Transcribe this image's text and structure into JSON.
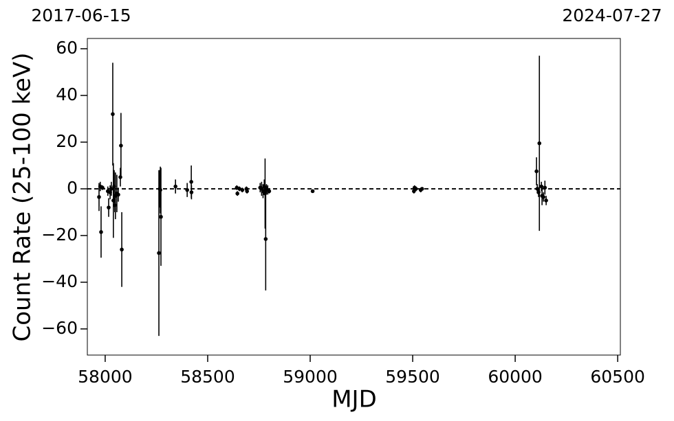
{
  "chart_data": {
    "type": "errorbar",
    "x_range_labels": [
      "2017-06-15",
      "2024-07-27"
    ],
    "xlabel": "MJD",
    "ylabel": "Count Rate (25-100 keV)",
    "color": "#000000",
    "reference_line": 0,
    "xlim": [
      57913,
      60513
    ],
    "ylim": [
      -71.2,
      64.4
    ],
    "xticks": [
      58000,
      58500,
      59000,
      59500,
      60000,
      60500
    ],
    "yticks": [
      {
        "value": -60,
        "label": "−60"
      },
      {
        "value": -40,
        "label": "−40"
      },
      {
        "value": -20,
        "label": "−20"
      },
      0,
      20,
      40,
      60
    ],
    "x": [
      57970,
      57976,
      57980,
      57987,
      58013,
      58017,
      58024,
      58030,
      58037,
      58040,
      58044,
      58047,
      58050,
      58057,
      58064,
      58074,
      58077,
      58081,
      58262,
      58266,
      58269,
      58272,
      58343,
      58400,
      58420,
      58421,
      58642,
      58645,
      58655,
      58669,
      58689,
      58692,
      58756,
      58763,
      58770,
      58776,
      58780,
      58783,
      58787,
      58793,
      58800,
      59012,
      59506,
      59509,
      59516,
      59539,
      59546,
      60104,
      60108,
      60114,
      60118,
      60128,
      60131,
      60138,
      60145,
      60151
    ],
    "values": [
      -3.5,
      1,
      -18.5,
      0.5,
      -1,
      -8,
      -1.5,
      0,
      32,
      -5,
      1,
      -7,
      -3,
      -2,
      -2.5,
      5,
      18.5,
      -26,
      -27.5,
      0,
      -0.5,
      -12,
      1,
      -0.5,
      3,
      -1.5,
      0.5,
      -2,
      0,
      -0.5,
      0,
      -1,
      0.5,
      0,
      -1,
      1,
      -2,
      -21.5,
      0,
      -0.5,
      -1,
      -1,
      -1,
      0.5,
      0,
      -0.5,
      0,
      7.5,
      0,
      -1.5,
      19.5,
      1,
      -3,
      -3.5,
      0.5,
      -5
    ],
    "errors": [
      6,
      2,
      11,
      1,
      2,
      4,
      3,
      3,
      22,
      16,
      7,
      3,
      10,
      8,
      3,
      4,
      14,
      16,
      35.5,
      8,
      10,
      21,
      3,
      3,
      7,
      3,
      1,
      1,
      1,
      1,
      1,
      1,
      2,
      3,
      3,
      3,
      15,
      22,
      2,
      2,
      1,
      0.5,
      1,
      1,
      1,
      1,
      0.5,
      6,
      2,
      2,
      37.5,
      2,
      4,
      2,
      3,
      2
    ]
  }
}
